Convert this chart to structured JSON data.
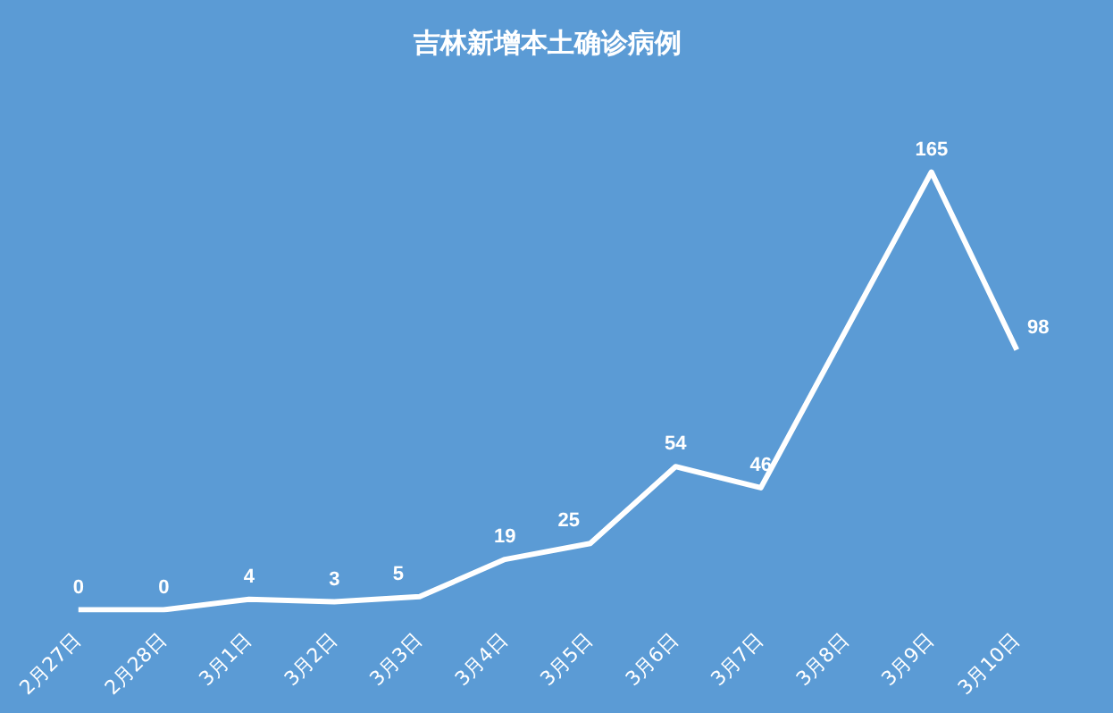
{
  "chart_data": {
    "type": "line",
    "title": "吉林新增本土确诊病例",
    "categories": [
      "2月27日",
      "2月28日",
      "3月1日",
      "3月2日",
      "3月3日",
      "3月4日",
      "3月5日",
      "3月6日",
      "3月7日",
      "3月8日",
      "3月9日",
      "3月10日"
    ],
    "series": [
      {
        "color": "#ffffff",
        "values": [
          0,
          0,
          4,
          3,
          5,
          19,
          25,
          54,
          46,
          null,
          165,
          98
        ]
      }
    ],
    "data_labels": true,
    "grid": false,
    "legend": false,
    "marker": "none",
    "line_style": "solid"
  }
}
